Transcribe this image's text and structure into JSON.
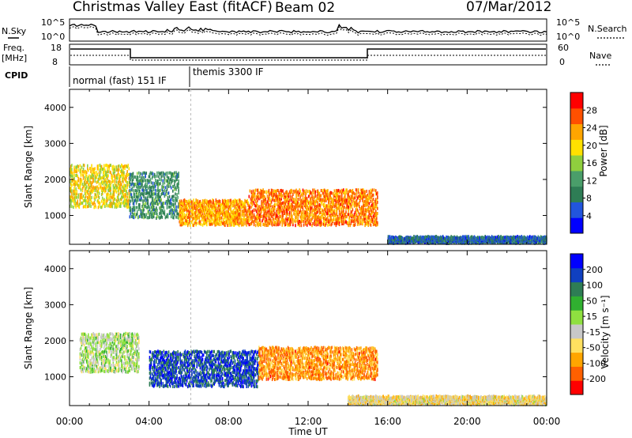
{
  "header": {
    "title": "Christmas Valley East (fitACF)",
    "beam": "Beam 02",
    "date": "07/Mar/2012"
  },
  "top_panels": {
    "nsky_label": "N.Sky",
    "nsky_ticks": [
      "10^5",
      "10^0"
    ],
    "nsearch_label": "N.Search",
    "nsearch_ticks": [
      "10^5",
      "10^0"
    ],
    "freq_label": "Freq.",
    "freq_unit": "[MHz]",
    "freq_ticks": [
      "18",
      "8"
    ],
    "nave_label": "Nave",
    "nave_ticks": [
      "60",
      "0"
    ],
    "cpid_label": "CPID",
    "cpid_modes": [
      "normal (fast) 151 IF",
      "themis 3300 IF"
    ]
  },
  "chart_data": [
    {
      "type": "heatmap",
      "title": "",
      "xlabel": "Time UT",
      "ylabel": "Slant Range [km]",
      "x_ticks": [
        "00:00",
        "04:00",
        "08:00",
        "12:00",
        "16:00",
        "20:00",
        "00:00"
      ],
      "y_ticks": [
        1000,
        2000,
        3000,
        4000
      ],
      "ylim": [
        200,
        4500
      ],
      "colorbar": {
        "label": "Power [dB]",
        "ticks": [
          4,
          8,
          12,
          16,
          20,
          24,
          28
        ],
        "colors": [
          "#0000ff",
          "#2255dd",
          "#2e7d55",
          "#4a9e6a",
          "#8fcf3e",
          "#ffe000",
          "#ffa500",
          "#ff5000",
          "#ff0000"
        ]
      },
      "features": [
        {
          "t_start_h": 0.0,
          "t_end_h": 3.0,
          "range_km": [
            1200,
            2400
          ],
          "level_db": 20
        },
        {
          "t_start_h": 3.0,
          "t_end_h": 5.5,
          "range_km": [
            900,
            2200
          ],
          "level_db": 10
        },
        {
          "t_start_h": 5.5,
          "t_end_h": 9.0,
          "range_km": [
            700,
            1400
          ],
          "level_db": 24
        },
        {
          "t_start_h": 9.0,
          "t_end_h": 15.5,
          "range_km": [
            700,
            1700
          ],
          "level_db": 26
        },
        {
          "t_start_h": 16.0,
          "t_end_h": 24.0,
          "range_km": [
            200,
            350
          ],
          "level_db": 6
        }
      ]
    },
    {
      "type": "heatmap",
      "title": "",
      "xlabel": "Time UT",
      "ylabel": "Slant Range [km]",
      "x_ticks": [
        "00:00",
        "04:00",
        "08:00",
        "12:00",
        "16:00",
        "20:00",
        "00:00"
      ],
      "y_ticks": [
        1000,
        2000,
        3000,
        4000
      ],
      "ylim": [
        200,
        4500
      ],
      "colorbar": {
        "label": "Velocity [m s⁻¹]",
        "ticks": [
          200,
          100,
          50,
          15,
          -15,
          -50,
          -100,
          -200
        ],
        "colors": [
          "#0000ff",
          "#1040c0",
          "#2e7d55",
          "#30b030",
          "#8fe040",
          "#c8c8c8",
          "#ffe060",
          "#ffa500",
          "#ff6000",
          "#ff0000"
        ]
      },
      "features": [
        {
          "t_start_h": 0.5,
          "t_end_h": 3.5,
          "range_km": [
            1100,
            2200
          ],
          "velocity_ms": 0
        },
        {
          "t_start_h": 4.0,
          "t_end_h": 9.5,
          "range_km": [
            700,
            1700
          ],
          "velocity_ms": 150
        },
        {
          "t_start_h": 9.5,
          "t_end_h": 15.5,
          "range_km": [
            900,
            1800
          ],
          "velocity_ms": -120
        },
        {
          "t_start_h": 14.0,
          "t_end_h": 24.0,
          "range_km": [
            200,
            400
          ],
          "velocity_ms": -50
        }
      ]
    }
  ]
}
